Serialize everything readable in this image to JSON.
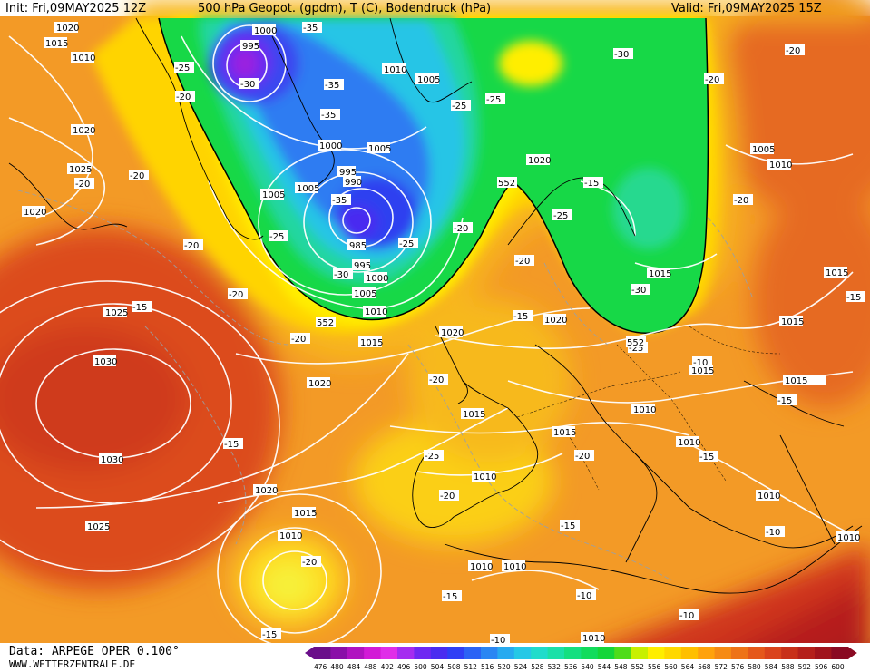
{
  "header": {
    "init": "Init: Fri,09MAY2025 12Z",
    "title": "500 hPa Geopot. (gpdm), T (C), Bodendruck (hPa)",
    "valid": "Valid: Fri,09MAY2025 15Z"
  },
  "footer": {
    "data_source": "Data: ARPEGE OPER 0.100°",
    "website": "WWW.WETTERZENTRALE.DE"
  },
  "colors": {
    "deep_low": "#4b1fd0",
    "blue": "#2c5cf0",
    "cyan": "#27c7e6",
    "green": "#12d94a",
    "yellow": "#ffee00",
    "orange": "#f59a1e",
    "red": "#d2331a",
    "darkred": "#a8111c"
  },
  "colorbar": {
    "values": [
      "476",
      "480",
      "484",
      "488",
      "492",
      "496",
      "500",
      "504",
      "508",
      "512",
      "516",
      "520",
      "524",
      "528",
      "532",
      "536",
      "540",
      "544",
      "548",
      "552",
      "556",
      "560",
      "564",
      "568",
      "572",
      "576",
      "580",
      "584",
      "588",
      "592",
      "596",
      "600"
    ],
    "colors": [
      "#6a0f8a",
      "#8a0fa8",
      "#b013c0",
      "#d21ad6",
      "#e02ee8",
      "#a52cf0",
      "#6f28f2",
      "#4a2cf0",
      "#2f3ff5",
      "#2b63f5",
      "#2a86f3",
      "#27aaf0",
      "#25c8e6",
      "#20dccb",
      "#1be0a8",
      "#15df80",
      "#12dc5c",
      "#15d63a",
      "#4fdc1a",
      "#c8f000",
      "#ffee00",
      "#ffd800",
      "#ffbf00",
      "#ffa20c",
      "#f68a14",
      "#ee7318",
      "#e5581b",
      "#da431c",
      "#c83019",
      "#b5201b",
      "#a1141c",
      "#8a0a22"
    ]
  },
  "isobar_labels": [
    "1020",
    "1015",
    "1010",
    "995",
    "1000",
    "1005",
    "1010",
    "1005",
    "1020",
    "1025",
    "1020",
    "1030",
    "1030",
    "1025",
    "1000",
    "1005",
    "995",
    "990",
    "985",
    "995",
    "1000",
    "1005",
    "1010",
    "1015",
    "1020",
    "1020",
    "1020",
    "1015",
    "1010",
    "1015",
    "1020",
    "1015",
    "1010",
    "1010",
    "1010",
    "1010",
    "1005",
    "1010",
    "1015",
    "1015",
    "1015",
    "1015",
    "1015",
    "1010",
    "1010",
    "1010",
    "1010",
    "1020",
    "1005",
    "1025"
  ],
  "temp_labels": [
    "-35",
    "-25",
    "-20",
    "-30",
    "-35",
    "-35",
    "-25",
    "-25",
    "-30",
    "-20",
    "-20",
    "-20",
    "-20",
    "-20",
    "-15",
    "-20",
    "-35",
    "-25",
    "-30",
    "-20",
    "-25",
    "-30",
    "-20",
    "-20",
    "-20",
    "-25",
    "-25",
    "-15",
    "-20",
    "-25",
    "-20",
    "-15",
    "-15",
    "-15",
    "-10",
    "-10",
    "-10",
    "-15",
    "-20",
    "-15",
    "-20",
    "-10",
    "-10",
    "-15",
    "-15",
    "-15"
  ],
  "geopot_labels": [
    "552",
    "552",
    "552"
  ]
}
